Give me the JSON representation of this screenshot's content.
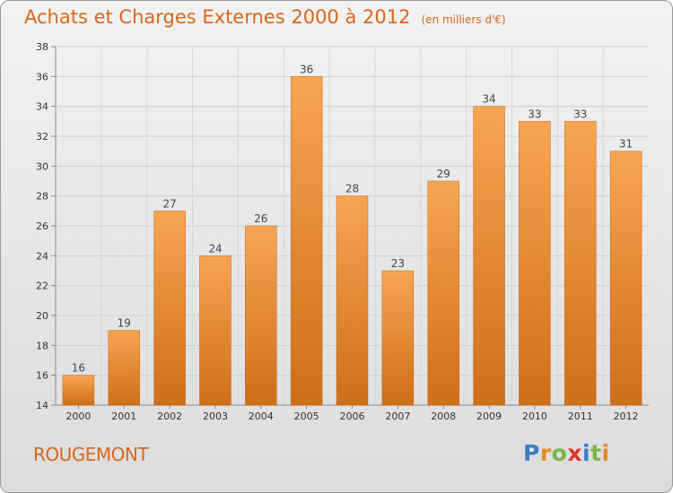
{
  "page": {
    "title": "Achats et Charges Externes 2000 à 2012",
    "unit": "(en milliers d'€)",
    "place": "ROUGEMONT",
    "logo": {
      "letters": [
        "P",
        "r",
        "o",
        "x",
        "i",
        "t",
        "i"
      ],
      "colors": [
        "#3a7fc4",
        "#e98a2a",
        "#7ab648",
        "#d83a2f",
        "#3a7fc4",
        "#7ab648",
        "#e98a2a"
      ]
    }
  },
  "chart_data": {
    "type": "bar",
    "title": "Achats et Charges Externes 2000 à 2012",
    "subtitle": "(en milliers d'€)",
    "categories": [
      "2000",
      "2001",
      "2002",
      "2003",
      "2004",
      "2005",
      "2006",
      "2007",
      "2008",
      "2009",
      "2010",
      "2011",
      "2012"
    ],
    "values": [
      16,
      19,
      27,
      24,
      26,
      36,
      28,
      23,
      29,
      34,
      33,
      33,
      31
    ],
    "data_labels": [
      "16",
      "19",
      "27",
      "24",
      "26",
      "36",
      "28",
      "23",
      "29",
      "34",
      "33",
      "33",
      "31"
    ],
    "yticks": [
      "14",
      "16",
      "18",
      "20",
      "22",
      "24",
      "26",
      "28",
      "30",
      "32",
      "34",
      "36",
      "38"
    ],
    "ylim": [
      14,
      38
    ],
    "xlabel": "",
    "ylabel": "",
    "grid": true,
    "bar_color_light": "#f7a552",
    "bar_color_dark": "#cf6e1a",
    "text_color": "#d9661c"
  }
}
